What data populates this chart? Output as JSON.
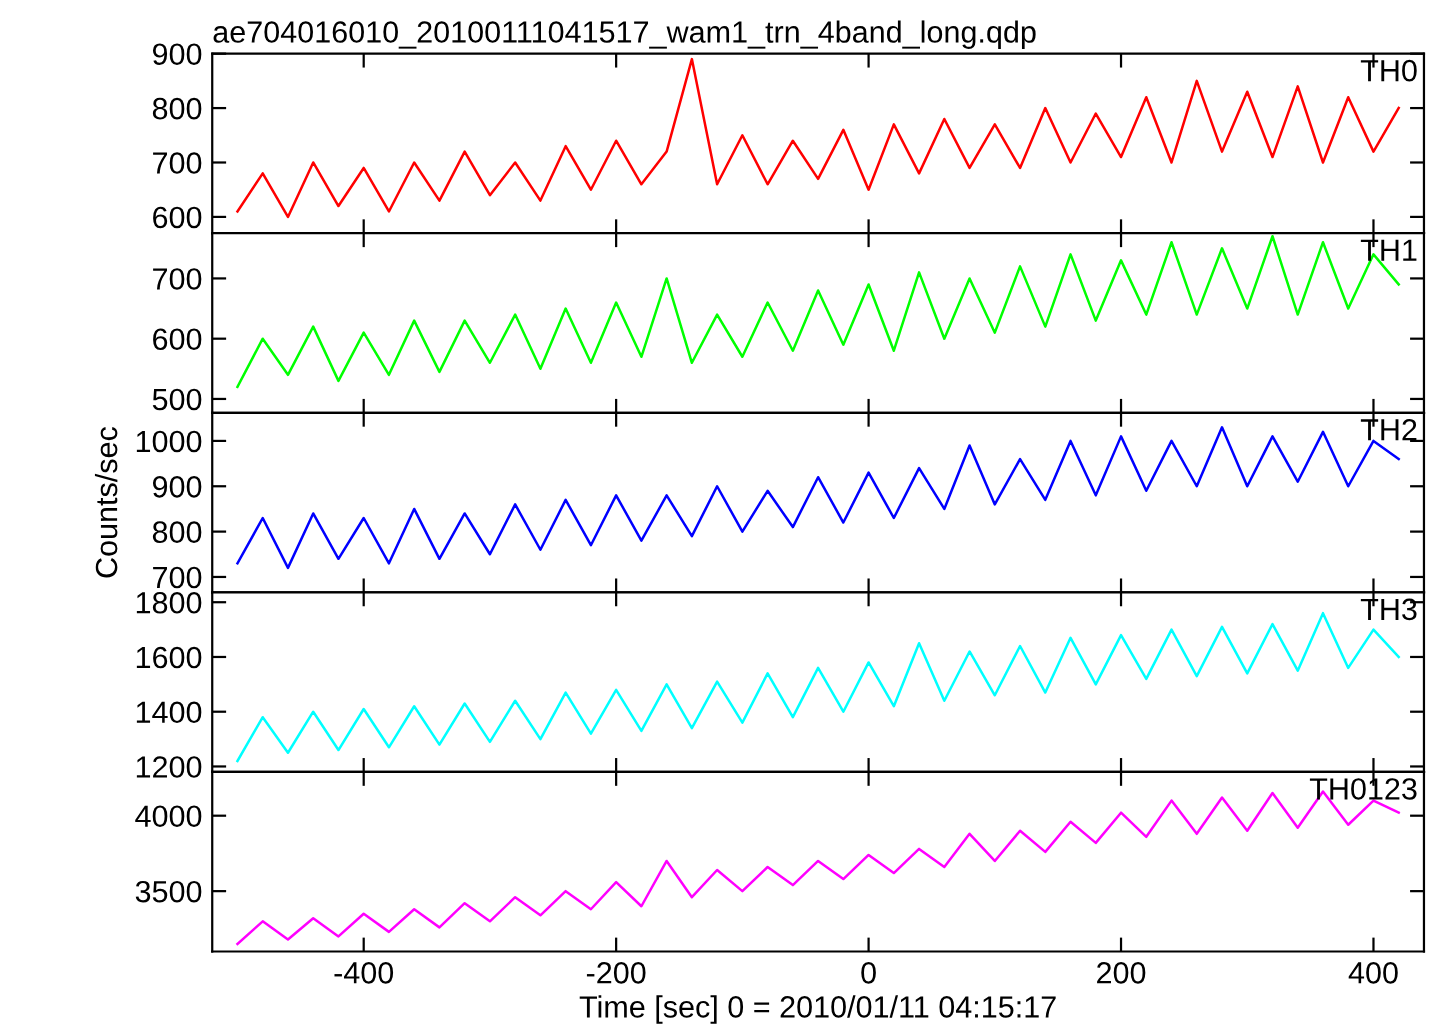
{
  "chart_data": [
    {
      "type": "line",
      "title": "ae704016010_20100111041517_wam1_trn_4band_long.qdp",
      "x": [
        -500,
        -480,
        -460,
        -440,
        -420,
        -400,
        -380,
        -360,
        -340,
        -320,
        -300,
        -280,
        -260,
        -240,
        -220,
        -200,
        -180,
        -160,
        -140,
        -120,
        -100,
        -80,
        -60,
        -40,
        -20,
        0,
        20,
        40,
        60,
        80,
        100,
        120,
        140,
        160,
        180,
        200,
        220,
        240,
        260,
        280,
        300,
        320,
        340,
        360,
        380,
        400,
        420
      ],
      "xlim": [
        -520,
        440
      ],
      "xticks": [
        -400,
        -200,
        0,
        200,
        400
      ],
      "ylim": [
        570,
        900
      ],
      "yticks": [
        600,
        700,
        800,
        900
      ],
      "tick_labels": "y",
      "grid": false,
      "series": [
        {
          "name": "TH0",
          "color": "#ff0000",
          "values": [
            610,
            680,
            600,
            700,
            620,
            690,
            610,
            700,
            630,
            720,
            640,
            700,
            630,
            730,
            650,
            740,
            660,
            720,
            890,
            660,
            750,
            660,
            740,
            670,
            760,
            650,
            770,
            680,
            780,
            690,
            770,
            690,
            800,
            700,
            790,
            710,
            820,
            700,
            850,
            720,
            830,
            710,
            840,
            700,
            820,
            720,
            800
          ]
        }
      ]
    },
    {
      "type": "line",
      "x": [
        -500,
        -480,
        -460,
        -440,
        -420,
        -400,
        -380,
        -360,
        -340,
        -320,
        -300,
        -280,
        -260,
        -240,
        -220,
        -200,
        -180,
        -160,
        -140,
        -120,
        -100,
        -80,
        -60,
        -40,
        -20,
        0,
        20,
        40,
        60,
        80,
        100,
        120,
        140,
        160,
        180,
        200,
        220,
        240,
        260,
        280,
        300,
        320,
        340,
        360,
        380,
        400,
        420
      ],
      "xlim": [
        -520,
        440
      ],
      "xticks": [
        -400,
        -200,
        0,
        200,
        400
      ],
      "ylim": [
        477,
        775
      ],
      "yticks": [
        500,
        600,
        700
      ],
      "tick_labels": "y",
      "grid": false,
      "series": [
        {
          "name": "TH1",
          "color": "#00ff00",
          "values": [
            520,
            600,
            540,
            620,
            530,
            610,
            540,
            630,
            545,
            630,
            560,
            640,
            550,
            650,
            560,
            660,
            570,
            700,
            560,
            640,
            570,
            660,
            580,
            680,
            590,
            690,
            580,
            710,
            600,
            700,
            610,
            720,
            620,
            740,
            630,
            730,
            640,
            760,
            640,
            750,
            650,
            770,
            640,
            760,
            650,
            740,
            690
          ]
        }
      ]
    },
    {
      "type": "line",
      "ylabel": "Counts/sec",
      "x": [
        -500,
        -480,
        -460,
        -440,
        -420,
        -400,
        -380,
        -360,
        -340,
        -320,
        -300,
        -280,
        -260,
        -240,
        -220,
        -200,
        -180,
        -160,
        -140,
        -120,
        -100,
        -80,
        -60,
        -40,
        -20,
        0,
        20,
        40,
        60,
        80,
        100,
        120,
        140,
        160,
        180,
        200,
        220,
        240,
        260,
        280,
        300,
        320,
        340,
        360,
        380,
        400,
        420
      ],
      "xlim": [
        -520,
        440
      ],
      "xticks": [
        -400,
        -200,
        0,
        200,
        400
      ],
      "ylim": [
        666,
        1062
      ],
      "yticks": [
        700,
        800,
        900,
        1000
      ],
      "tick_labels": "y",
      "grid": false,
      "series": [
        {
          "name": "TH2",
          "color": "#0000ff",
          "values": [
            730,
            830,
            720,
            840,
            740,
            830,
            730,
            850,
            740,
            840,
            750,
            860,
            760,
            870,
            770,
            880,
            780,
            880,
            790,
            900,
            800,
            890,
            810,
            920,
            820,
            930,
            830,
            940,
            850,
            990,
            860,
            960,
            870,
            1000,
            880,
            1010,
            890,
            1000,
            900,
            1030,
            900,
            1010,
            910,
            1020,
            900,
            1000,
            960
          ]
        }
      ]
    },
    {
      "type": "line",
      "x": [
        -500,
        -480,
        -460,
        -440,
        -420,
        -400,
        -380,
        -360,
        -340,
        -320,
        -300,
        -280,
        -260,
        -240,
        -220,
        -200,
        -180,
        -160,
        -140,
        -120,
        -100,
        -80,
        -60,
        -40,
        -20,
        0,
        20,
        40,
        60,
        80,
        100,
        120,
        140,
        160,
        180,
        200,
        220,
        240,
        260,
        280,
        300,
        320,
        340,
        360,
        380,
        400,
        420
      ],
      "xlim": [
        -520,
        440
      ],
      "xticks": [
        -400,
        -200,
        0,
        200,
        400
      ],
      "ylim": [
        1180,
        1836
      ],
      "yticks": [
        1200,
        1400,
        1600,
        1800
      ],
      "tick_labels": "y",
      "grid": false,
      "series": [
        {
          "name": "TH3",
          "color": "#00ffff",
          "values": [
            1220,
            1380,
            1250,
            1400,
            1260,
            1410,
            1270,
            1420,
            1280,
            1430,
            1290,
            1440,
            1300,
            1470,
            1320,
            1480,
            1330,
            1500,
            1340,
            1510,
            1360,
            1540,
            1380,
            1560,
            1400,
            1580,
            1420,
            1650,
            1440,
            1620,
            1460,
            1640,
            1470,
            1670,
            1500,
            1680,
            1520,
            1700,
            1530,
            1710,
            1540,
            1720,
            1550,
            1760,
            1560,
            1700,
            1600
          ]
        }
      ]
    },
    {
      "type": "line",
      "xlabel": "Time [sec] 0 = 2010/01/11 04:15:17",
      "x": [
        -500,
        -480,
        -460,
        -440,
        -420,
        -400,
        -380,
        -360,
        -340,
        -320,
        -300,
        -280,
        -260,
        -240,
        -220,
        -200,
        -180,
        -160,
        -140,
        -120,
        -100,
        -80,
        -60,
        -40,
        -20,
        0,
        20,
        40,
        60,
        80,
        100,
        120,
        140,
        160,
        180,
        200,
        220,
        240,
        260,
        280,
        300,
        320,
        340,
        360,
        380,
        400,
        420
      ],
      "xlim": [
        -520,
        440
      ],
      "xticks": [
        -400,
        -200,
        0,
        200,
        400
      ],
      "ylim": [
        3100,
        4290
      ],
      "yticks": [
        3500,
        4000
      ],
      "grid": false,
      "series": [
        {
          "name": "TH0123",
          "color": "#ff00ff",
          "values": [
            3150,
            3300,
            3180,
            3320,
            3200,
            3350,
            3230,
            3380,
            3260,
            3420,
            3300,
            3460,
            3340,
            3500,
            3380,
            3560,
            3400,
            3700,
            3460,
            3640,
            3500,
            3660,
            3540,
            3700,
            3580,
            3740,
            3620,
            3780,
            3660,
            3880,
            3700,
            3900,
            3760,
            3960,
            3820,
            4020,
            3860,
            4100,
            3880,
            4120,
            3900,
            4150,
            3920,
            4160,
            3940,
            4100,
            4020
          ]
        }
      ]
    }
  ]
}
